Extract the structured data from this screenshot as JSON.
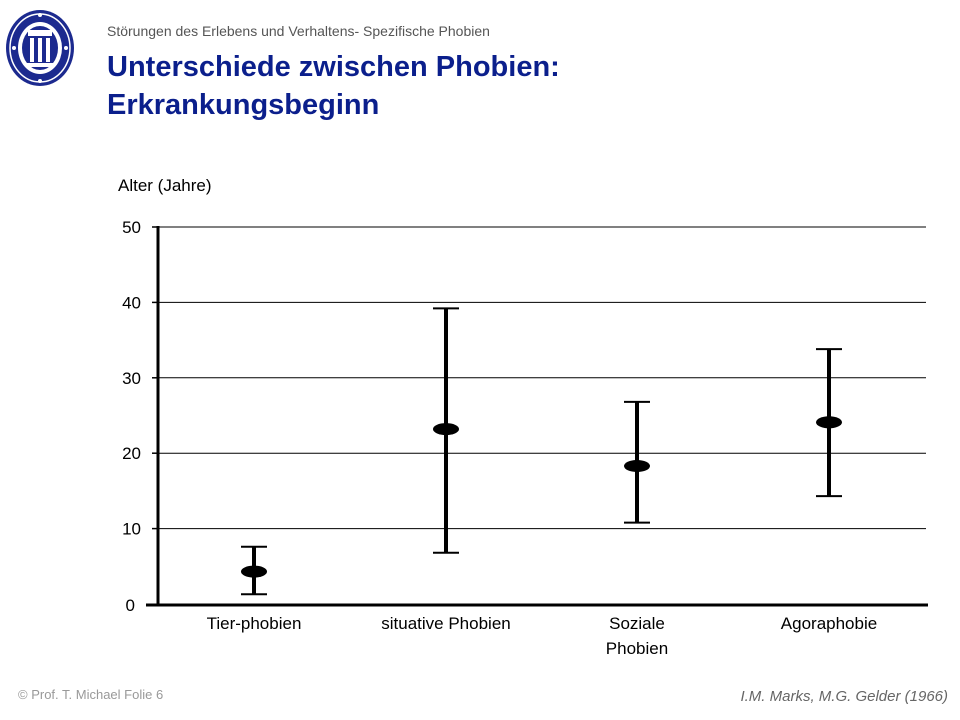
{
  "header": {
    "subtitle": "Störungen des Erlebens und Verhaltens- Spezifische Phobien",
    "title_line1": "Unterschiede zwischen Phobien:",
    "title_line2": "Erkrankungsbeginn",
    "logo": "university-seal-logo"
  },
  "footer": {
    "left": "© Prof. T. Michael Folie 6",
    "right": "I.M. Marks, M.G. Gelder (1966)"
  },
  "colors": {
    "title": "#0b1f8c",
    "logo": "#1c2a8f",
    "data": "#000000"
  },
  "chart_data": {
    "type": "range",
    "ylabel": "Alter (Jahre)",
    "ylim": [
      0,
      50
    ],
    "yticks": [
      0,
      10,
      20,
      30,
      40,
      50
    ],
    "grid": true,
    "categories": [
      {
        "label": [
          "Tier-phobien"
        ],
        "mean": 4.3,
        "low": 1.3,
        "high": 7.6
      },
      {
        "label": [
          "situative Phobien"
        ],
        "mean": 23.2,
        "low": 6.8,
        "high": 39.2
      },
      {
        "label": [
          "Soziale",
          "Phobien"
        ],
        "mean": 18.3,
        "low": 10.8,
        "high": 26.8
      },
      {
        "label": [
          "Agoraphobie"
        ],
        "mean": 24.1,
        "low": 14.3,
        "high": 33.8
      }
    ]
  }
}
